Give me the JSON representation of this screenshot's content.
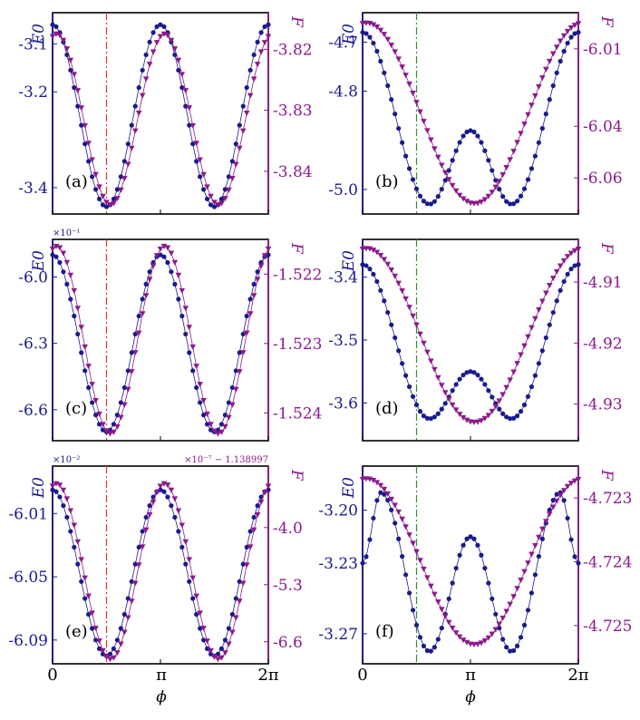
{
  "figure": {
    "x_tick_labels": [
      "0",
      "π",
      "2π"
    ],
    "x_axis_label": "ϕ"
  },
  "colors": {
    "e0_series": "#1a1a8c",
    "f_series": "#8b1a8b",
    "vline_red": "#d43a2a",
    "vline_green": "#3a8a3a"
  },
  "chart_data": [
    {
      "panel": "(a)",
      "type": "scatter",
      "left_axis": {
        "label": "E0",
        "ticks": [
          "-3.1",
          "-3.2",
          "-3.4"
        ],
        "tick_values": [
          -3.1,
          -3.2,
          -3.4
        ],
        "ylim": [
          -3.455,
          -3.035
        ]
      },
      "right_axis": {
        "label": "F",
        "ticks": [
          "-3.82",
          "-3.83",
          "-3.84"
        ],
        "tick_values": [
          -3.82,
          -3.83,
          -3.84
        ],
        "ylim": [
          -3.847,
          -3.814
        ]
      },
      "vline": {
        "x": 1.5708,
        "color": "red"
      },
      "series": [
        {
          "name": "E0",
          "axis": "left",
          "shape": "single",
          "min": -3.44,
          "max": -3.06,
          "phase": 0
        },
        {
          "name": "F",
          "axis": "right",
          "shape": "single",
          "min": -3.8455,
          "max": -3.8175,
          "phase": 0.12
        }
      ]
    },
    {
      "panel": "(b)",
      "type": "scatter",
      "left_axis": {
        "label": "E0",
        "ticks": [
          "-4.7",
          "-4.8",
          "-5.0"
        ],
        "tick_values": [
          -4.7,
          -4.8,
          -5.0
        ],
        "ylim": [
          -5.05,
          -4.64
        ]
      },
      "right_axis": {
        "label": "F",
        "ticks": [
          "-6.01",
          "-6.04",
          "-6.06"
        ],
        "tick_values": [
          -6.01,
          -6.04,
          -6.06
        ],
        "ylim": [
          -6.074,
          -5.996
        ]
      },
      "vline": {
        "x": 1.5708,
        "color": "green"
      },
      "series": [
        {
          "name": "E0",
          "axis": "left",
          "shape": "double",
          "min": -5.03,
          "max": -4.68,
          "mid": -4.88
        },
        {
          "name": "F",
          "axis": "right",
          "shape": "wide",
          "min": -6.07,
          "max": -6.0,
          "phase": 0.12
        }
      ]
    },
    {
      "panel": "(c)",
      "type": "scatter",
      "left_axis": {
        "label": "E0",
        "ticks": [
          "-6.0",
          "-6.3",
          "-6.6"
        ],
        "tick_values": [
          -6.0,
          -6.3,
          -6.6
        ],
        "ylim": [
          -6.74,
          -5.83
        ],
        "multiplier": "×10⁻¹"
      },
      "right_axis": {
        "label": "F",
        "ticks": [
          "-1.522",
          "-1.523",
          "-1.524"
        ],
        "tick_values": [
          -1.522,
          -1.523,
          -1.524
        ],
        "ylim": [
          -1.5244,
          -1.5215
        ]
      },
      "vline": {
        "x": 1.5708,
        "color": "red"
      },
      "series": [
        {
          "name": "E0",
          "axis": "left",
          "shape": "single",
          "min": -6.7,
          "max": -5.9,
          "phase": 0
        },
        {
          "name": "F",
          "axis": "right",
          "shape": "single",
          "min": -1.5243,
          "max": -1.5216,
          "phase": 0.12
        }
      ]
    },
    {
      "panel": "(d)",
      "type": "scatter",
      "left_axis": {
        "label": "E0",
        "ticks": [
          "-3.4",
          "-3.5",
          "-3.6"
        ],
        "tick_values": [
          -3.4,
          -3.5,
          -3.6
        ],
        "ylim": [
          -3.66,
          -3.34
        ]
      },
      "right_axis": {
        "label": "F",
        "ticks": [
          "-4.91",
          "-4.92",
          "-4.93"
        ],
        "tick_values": [
          -4.91,
          -4.92,
          -4.93
        ],
        "ylim": [
          -4.936,
          -4.903
        ]
      },
      "vline": {
        "x": 1.5708,
        "color": "green"
      },
      "series": [
        {
          "name": "E0",
          "axis": "left",
          "shape": "double",
          "min": -3.625,
          "max": -3.38,
          "mid": -3.55
        },
        {
          "name": "F",
          "axis": "right",
          "shape": "wide",
          "min": -4.933,
          "max": -4.9045,
          "phase": 0.12
        }
      ]
    },
    {
      "panel": "(e)",
      "type": "scatter",
      "left_axis": {
        "label": "E0",
        "ticks": [
          "-6.01",
          "-6.05",
          "-6.09"
        ],
        "tick_values": [
          -6.01,
          -6.05,
          -6.09
        ],
        "ylim": [
          -6.105,
          -5.98
        ],
        "multiplier": "×10⁻²"
      },
      "right_axis": {
        "label": "F",
        "ticks": [
          "-4.0",
          "-5.3",
          "-6.6"
        ],
        "tick_values": [
          -4.0,
          -5.3,
          -6.6
        ],
        "ylim": [
          -7.1,
          -2.6
        ],
        "multiplier": "×10⁻⁷ − 1.138997"
      },
      "vline": {
        "x": 1.5708,
        "color": "red"
      },
      "series": [
        {
          "name": "E0",
          "axis": "left",
          "shape": "single",
          "min": -6.1,
          "max": -5.995,
          "phase": 0
        },
        {
          "name": "F",
          "axis": "right",
          "shape": "single",
          "min": -7.0,
          "max": -3.0,
          "phase": 0.12
        }
      ]
    },
    {
      "panel": "(f)",
      "type": "scatter",
      "left_axis": {
        "label": "E0",
        "ticks": [
          "-3.20",
          "-3.23",
          "-3.27"
        ],
        "tick_values": [
          -3.2,
          -3.23,
          -3.27
        ],
        "ylim": [
          -3.287,
          -3.175
        ]
      },
      "right_axis": {
        "label": "F",
        "ticks": [
          "-4.723",
          "-4.724",
          "-4.725"
        ],
        "tick_values": [
          -4.723,
          -4.724,
          -4.725
        ],
        "ylim": [
          -4.7256,
          -4.7225
        ]
      },
      "vline": {
        "x": 1.5708,
        "color": "green"
      },
      "series": [
        {
          "name": "E0",
          "axis": "left",
          "shape": "multi",
          "min": -3.28,
          "max": -3.19,
          "mid": -3.215,
          "start": -3.23
        },
        {
          "name": "F",
          "axis": "right",
          "shape": "wide",
          "min": -4.7253,
          "max": -4.7227,
          "phase": 0.12
        }
      ]
    }
  ]
}
